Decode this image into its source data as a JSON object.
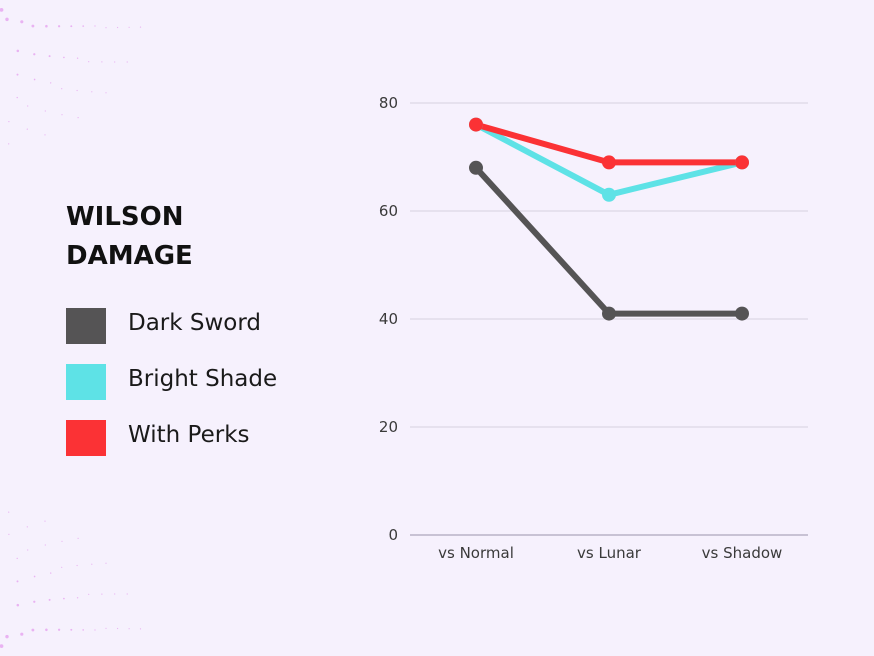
{
  "chart_data": {
    "type": "line",
    "title": "WILSON DAMAGE",
    "categories": [
      "vs Normal",
      "vs Lunar",
      "vs Shadow"
    ],
    "series": [
      {
        "name": "Dark Sword",
        "values": [
          68,
          41,
          41
        ],
        "color": "#555455"
      },
      {
        "name": "Bright Shade",
        "values": [
          76,
          63,
          69
        ],
        "color": "#5ee2e6"
      },
      {
        "name": "With Perks",
        "values": [
          76,
          69,
          69
        ],
        "color": "#fb3235"
      }
    ],
    "ylim": [
      0,
      80
    ],
    "yticks": [
      0,
      20,
      40,
      60,
      80
    ],
    "xlabel": "",
    "ylabel": "",
    "grid": true,
    "legend_position": "left"
  }
}
